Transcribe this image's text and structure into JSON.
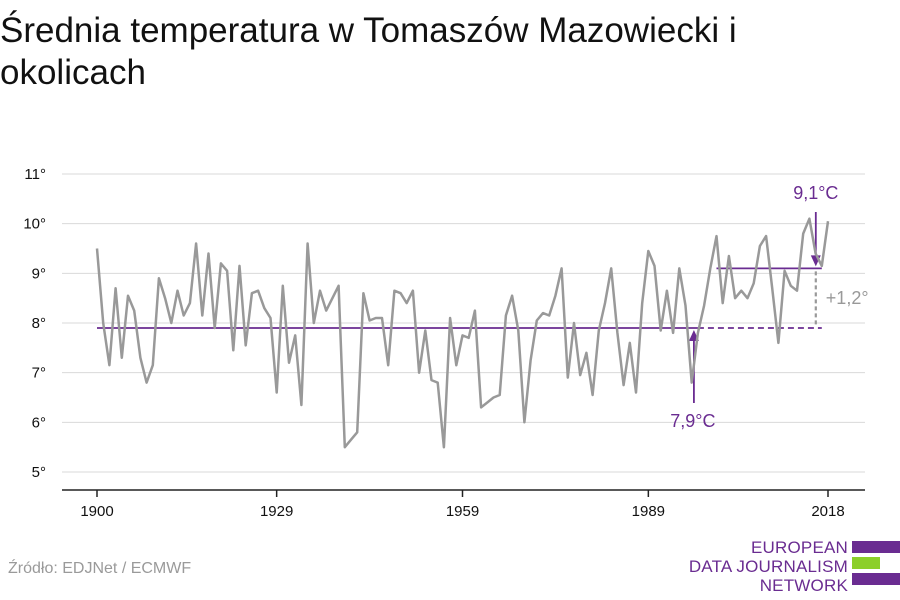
{
  "title": "Średnia temperatura w Tomaszów Mazowiecki i okolicach",
  "source": "Źródło: EDJNet / ECMWF",
  "logo": {
    "lines": [
      "EUROPEAN",
      "DATA JOURNALISM",
      "NETWORK"
    ],
    "colors": [
      "#6a2c91",
      "#8ccf2a",
      "#6a2c91"
    ]
  },
  "colors": {
    "series": "#999999",
    "accent": "#6a2c91",
    "delta": "#999999"
  },
  "chart_data": {
    "type": "line",
    "title": "Średnia temperatura w Tomaszów Mazowiecki i okolicach",
    "xlabel": "",
    "ylabel": "",
    "xlim": [
      1900,
      2018
    ],
    "ylim": [
      5,
      11
    ],
    "x_ticks": [
      1900,
      1929,
      1959,
      1989,
      2018
    ],
    "y_ticks": [
      5,
      6,
      7,
      8,
      9,
      10,
      11
    ],
    "y_tick_labels": [
      "5°",
      "6°",
      "7°",
      "8°",
      "9°",
      "10°",
      "11°"
    ],
    "grid": true,
    "series": [
      {
        "x": [
          1900,
          1901,
          1902,
          1903,
          1904,
          1905,
          1906,
          1907,
          1908,
          1909,
          1910,
          1911,
          1912,
          1913,
          1914,
          1915,
          1916,
          1917,
          1918,
          1919,
          1920,
          1921,
          1922,
          1923,
          1924,
          1925,
          1926,
          1927,
          1928,
          1929,
          1930,
          1931,
          1932,
          1933,
          1934,
          1935,
          1936,
          1937,
          1938,
          1939,
          1940,
          1941,
          1942,
          1943,
          1944,
          1945,
          1946,
          1947,
          1948,
          1949,
          1950,
          1951,
          1952,
          1953,
          1954,
          1955,
          1956,
          1957,
          1958,
          1959,
          1960,
          1961,
          1962,
          1963,
          1964,
          1965,
          1966,
          1967,
          1968,
          1969,
          1970,
          1971,
          1972,
          1973,
          1974,
          1975,
          1976,
          1977,
          1978,
          1979,
          1980,
          1981,
          1982,
          1983,
          1984,
          1985,
          1986,
          1987,
          1988,
          1989,
          1990,
          1991,
          1992,
          1993,
          1994,
          1995,
          1996,
          1997,
          1998,
          1999,
          2000,
          2001,
          2002,
          2003,
          2004,
          2005,
          2006,
          2007,
          2008,
          2009,
          2010,
          2011,
          2012,
          2013,
          2014,
          2015,
          2016,
          2017,
          2018
        ],
        "values": [
          9.5,
          8.0,
          7.15,
          8.7,
          7.3,
          8.55,
          8.25,
          7.3,
          6.8,
          7.15,
          8.9,
          8.5,
          8.0,
          8.65,
          8.15,
          8.4,
          9.6,
          8.15,
          9.4,
          7.9,
          9.2,
          9.05,
          7.45,
          9.15,
          7.55,
          8.6,
          8.65,
          8.3,
          8.1,
          6.6,
          8.75,
          7.2,
          7.75,
          6.35,
          9.6,
          8.0,
          8.65,
          8.25,
          8.5,
          8.75,
          5.5,
          5.65,
          5.8,
          8.6,
          8.05,
          8.1,
          8.1,
          7.15,
          8.65,
          8.6,
          8.4,
          8.65,
          7.0,
          7.85,
          6.85,
          6.8,
          5.5,
          8.1,
          7.15,
          7.75,
          7.7,
          8.25,
          6.3,
          6.4,
          6.5,
          6.55,
          8.15,
          8.55,
          7.85,
          6.0,
          7.25,
          8.05,
          8.2,
          8.15,
          8.55,
          9.1,
          6.9,
          8.0,
          6.95,
          7.4,
          6.55,
          7.85,
          8.4,
          9.1,
          7.8,
          6.75,
          7.6,
          6.6,
          8.4,
          9.45,
          9.15,
          7.85,
          8.65,
          7.8,
          9.1,
          8.35,
          6.8,
          7.8,
          8.35,
          9.1,
          9.75,
          8.4,
          9.35,
          8.5,
          8.65,
          8.5,
          8.8,
          9.55,
          9.75,
          8.7,
          7.6,
          9.05,
          8.75,
          8.65,
          9.8,
          10.1,
          9.4,
          9.15,
          10.05
        ]
      }
    ],
    "annotations": {
      "baseline": {
        "value": 7.9,
        "label": "7,9°C",
        "x_end": 1997,
        "dash_end": 2017
      },
      "recent": {
        "value": 9.1,
        "label": "9,1°C",
        "x_start": 2000,
        "x_end": 2017
      },
      "delta": {
        "label": "+1,2°"
      }
    }
  }
}
